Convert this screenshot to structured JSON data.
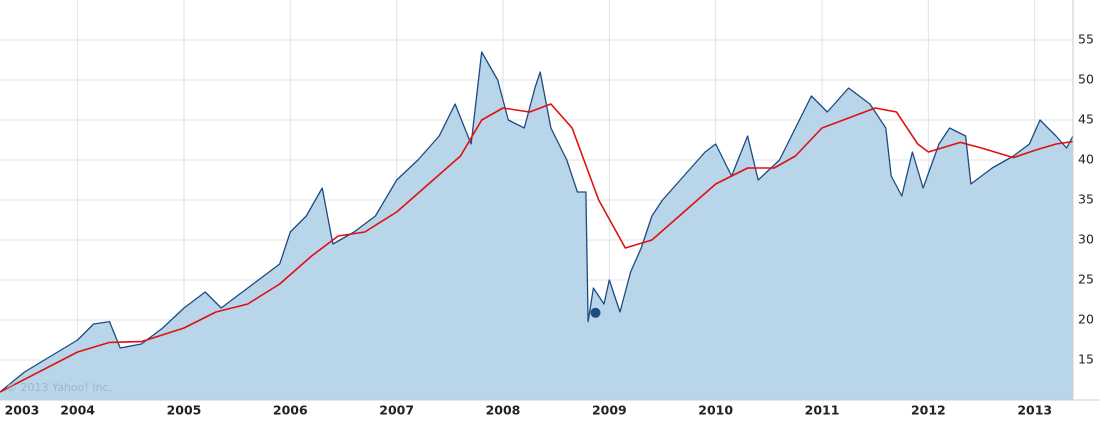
{
  "chart_data": {
    "type": "area",
    "watermark": "© 2013 Yahoo! Inc.",
    "xlim": [
      2003.27,
      2013.36
    ],
    "ylim": [
      10,
      60
    ],
    "xticks": [
      2003,
      2004,
      2005,
      2006,
      2007,
      2008,
      2009,
      2010,
      2011,
      2012,
      2013
    ],
    "yticks": [
      15,
      20,
      25,
      30,
      35,
      40,
      45,
      50,
      55
    ],
    "grid": true,
    "series": [
      {
        "color": "#1d4b80",
        "fill": "#b9d5ea",
        "x": [
          2003.27,
          2003.5,
          2003.75,
          2004.0,
          2004.15,
          2004.3,
          2004.4,
          2004.6,
          2004.8,
          2005.0,
          2005.2,
          2005.35,
          2005.5,
          2005.7,
          2005.9,
          2006.0,
          2006.15,
          2006.3,
          2006.4,
          2006.6,
          2006.8,
          2007.0,
          2007.2,
          2007.4,
          2007.55,
          2007.7,
          2007.8,
          2007.95,
          2008.05,
          2008.2,
          2008.3,
          2008.35,
          2008.45,
          2008.6,
          2008.7,
          2008.78,
          2008.8,
          2008.85,
          2008.95,
          2009.0,
          2009.1,
          2009.2,
          2009.3,
          2009.4,
          2009.5,
          2009.7,
          2009.9,
          2010.0,
          2010.15,
          2010.3,
          2010.4,
          2010.6,
          2010.75,
          2010.9,
          2011.05,
          2011.25,
          2011.45,
          2011.6,
          2011.65,
          2011.75,
          2011.85,
          2011.95,
          2012.1,
          2012.2,
          2012.35,
          2012.4,
          2012.6,
          2012.8,
          2012.95,
          2013.05,
          2013.2,
          2013.3,
          2013.36
        ],
        "values": [
          11,
          13.5,
          15.5,
          17.5,
          19.5,
          19.8,
          16.5,
          17,
          19,
          21.5,
          23.5,
          21.5,
          23,
          25,
          27,
          31,
          33,
          36.5,
          29.5,
          31,
          33,
          37.5,
          40,
          43,
          47,
          42,
          53.5,
          50,
          45,
          44,
          49,
          51,
          44,
          40,
          36,
          36,
          19.8,
          24,
          22,
          25,
          21,
          26,
          29,
          33,
          35,
          38,
          41,
          42,
          38,
          43,
          37.5,
          40,
          44,
          48,
          46,
          49,
          47,
          44,
          38,
          35.5,
          41,
          36.5,
          42,
          44,
          43,
          37,
          39,
          40.5,
          42,
          45,
          43,
          41.5,
          43
        ]
      },
      {
        "color": "#e01010",
        "x": [
          2003.27,
          2004.0,
          2004.3,
          2004.6,
          2005.0,
          2005.3,
          2005.6,
          2005.9,
          2006.2,
          2006.45,
          2006.7,
          2007.0,
          2007.3,
          2007.6,
          2007.8,
          2008.0,
          2008.25,
          2008.45,
          2008.65,
          2008.9,
          2009.15,
          2009.4,
          2009.7,
          2010.0,
          2010.3,
          2010.55,
          2010.75,
          2011.0,
          2011.3,
          2011.5,
          2011.7,
          2011.9,
          2012.0,
          2012.3,
          2012.5,
          2012.8,
          2013.0,
          2013.2,
          2013.36
        ],
        "values": [
          11,
          16,
          17.2,
          17.3,
          19,
          21,
          22,
          24.5,
          28,
          30.5,
          31,
          33.5,
          37,
          40.5,
          45,
          46.5,
          46,
          47,
          44,
          35,
          29,
          30,
          33.5,
          37,
          39,
          39,
          40.5,
          44,
          45.5,
          46.5,
          46,
          42,
          41,
          42.2,
          41.5,
          40.3,
          41.2,
          42,
          42.3
        ]
      }
    ],
    "marker": {
      "x": 2008.87,
      "y": 20.9,
      "color": "#1d4b80"
    }
  }
}
